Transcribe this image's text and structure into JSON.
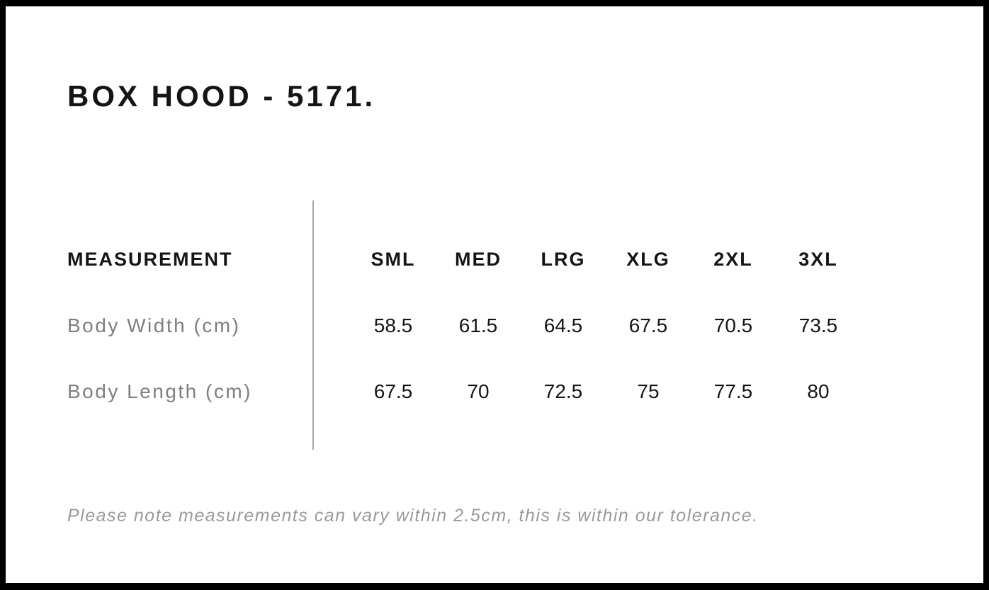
{
  "page": {
    "title": "BOX HOOD - 5171.",
    "note": "Please note measurements can vary within 2.5cm, this is within our tolerance."
  },
  "colors": {
    "frame": "#000000",
    "background": "#ffffff",
    "heading_text": "#151515",
    "value_text": "#151515",
    "row_label_text": "#7f7f7f",
    "note_text": "#9a9a9a",
    "divider": "#a8a8a8"
  },
  "chart_data": {
    "type": "table",
    "title": "BOX HOOD - 5171.",
    "columns": [
      "MEASUREMENT",
      "SML",
      "MED",
      "LRG",
      "XLG",
      "2XL",
      "3XL"
    ],
    "rows": [
      {
        "label": "Body Width (cm)",
        "values": [
          "58.5",
          "61.5",
          "64.5",
          "67.5",
          "70.5",
          "73.5"
        ]
      },
      {
        "label": "Body Length (cm)",
        "values": [
          "67.5",
          "70",
          "72.5",
          "75",
          "77.5",
          "80"
        ]
      }
    ],
    "note": "Please note measurements can vary within 2.5cm, this is within our tolerance."
  }
}
